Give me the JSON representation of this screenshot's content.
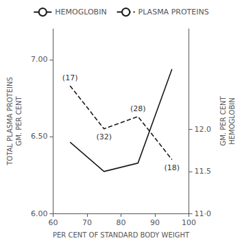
{
  "chart_data": {
    "type": "line",
    "xlabel": "PER CENT OF STANDARD BODY WEIGHT",
    "ylabel": "TOTAL PLASMA PROTEINS\nGM. PER CENT",
    "y2label": "GM. PER CENT\nHEMOGLOBIN",
    "x": [
      65,
      75,
      85,
      95
    ],
    "series": [
      {
        "name": "HEMOGLOBIN",
        "color": "#1a1a1a",
        "line_style": "solid",
        "axis": "y2",
        "values": [
          11.85,
          11.5,
          11.6,
          12.72
        ]
      },
      {
        "name": "PLASMA PROTEINS",
        "color": "#1a1a1a",
        "line_style": "dashed",
        "values": [
          6.83,
          6.55,
          6.63,
          6.35
        ]
      }
    ],
    "annotations": [
      {
        "text": "(17)",
        "x": 65,
        "y": 6.83
      },
      {
        "text": "(32)",
        "x": 75,
        "y": 6.55
      },
      {
        "text": "(28)",
        "x": 85,
        "y": 6.63
      },
      {
        "text": "(18)",
        "x": 95,
        "y": 6.35
      }
    ],
    "xlim": [
      60,
      100
    ],
    "xticks": [
      60,
      70,
      80,
      90,
      100
    ],
    "ylim": [
      6.0,
      7.2
    ],
    "yticks": [
      {
        "value": 6.0,
        "label": "6.00"
      },
      {
        "value": 6.5,
        "label": "6.50"
      },
      {
        "value": 7.0,
        "label": "7.00"
      }
    ],
    "y2lim": [
      11.0,
      13.2
    ],
    "y2ticks": [
      {
        "value": 11.0,
        "label": "11·0"
      },
      {
        "value": 11.5,
        "label": "11.5"
      },
      {
        "value": 12.0,
        "label": "12.0"
      }
    ],
    "legend": "top",
    "grid": false
  }
}
